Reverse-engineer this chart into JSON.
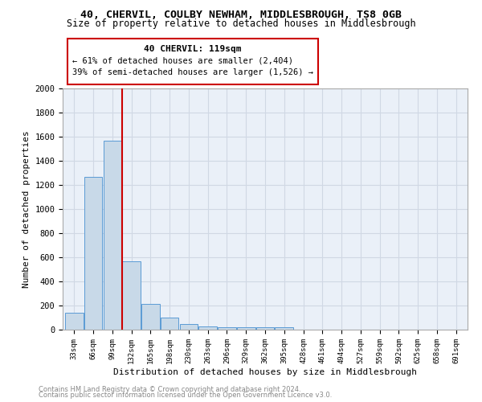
{
  "title1": "40, CHERVIL, COULBY NEWHAM, MIDDLESBROUGH, TS8 0GB",
  "title2": "Size of property relative to detached houses in Middlesbrough",
  "xlabel": "Distribution of detached houses by size in Middlesbrough",
  "ylabel": "Number of detached properties",
  "categories": [
    "33sqm",
    "66sqm",
    "99sqm",
    "132sqm",
    "165sqm",
    "198sqm",
    "230sqm",
    "263sqm",
    "296sqm",
    "329sqm",
    "362sqm",
    "395sqm",
    "428sqm",
    "461sqm",
    "494sqm",
    "527sqm",
    "559sqm",
    "592sqm",
    "625sqm",
    "658sqm",
    "691sqm"
  ],
  "values": [
    140,
    1265,
    1565,
    570,
    215,
    100,
    50,
    25,
    20,
    20,
    20,
    20,
    0,
    0,
    0,
    0,
    0,
    0,
    0,
    0,
    0
  ],
  "bar_color": "#c8d9e8",
  "bar_edge_color": "#5b9bd5",
  "grid_color": "#d0d8e4",
  "background_color": "#eaf0f8",
  "vline_color": "#cc0000",
  "annotation_title": "40 CHERVIL: 119sqm",
  "annotation_line1": "← 61% of detached houses are smaller (2,404)",
  "annotation_line2": "39% of semi-detached houses are larger (1,526) →",
  "annotation_box_color": "#cc0000",
  "ylim": [
    0,
    2000
  ],
  "yticks": [
    0,
    200,
    400,
    600,
    800,
    1000,
    1200,
    1400,
    1600,
    1800,
    2000
  ],
  "footnote1": "Contains HM Land Registry data © Crown copyright and database right 2024.",
  "footnote2": "Contains public sector information licensed under the Open Government Licence v3.0."
}
